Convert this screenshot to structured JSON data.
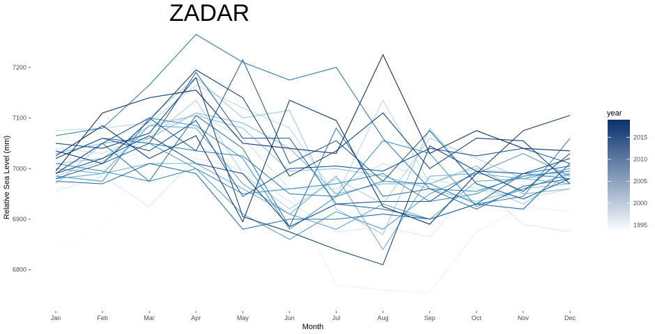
{
  "chart_data": {
    "type": "line",
    "title": "ZADAR",
    "xlabel": "Month",
    "ylabel": "Relative Sea Level (mm)",
    "categories": [
      "Jan",
      "Feb",
      "Mar",
      "Apr",
      "May",
      "Jun",
      "Jul",
      "Aug",
      "Sep",
      "Oct",
      "Nov",
      "Dec"
    ],
    "y_ticks": [
      6800,
      6900,
      7000,
      7100,
      7200
    ],
    "ylim": [
      6735,
      7285
    ],
    "grid": false,
    "color_scale": {
      "low": "#f7fbff",
      "high": "#08306b"
    },
    "legend": {
      "title": "year",
      "position": "right",
      "range": [
        1994,
        2019
      ],
      "ticks": [
        1995,
        2000,
        2005,
        2010,
        2015
      ]
    },
    "series": [
      {
        "year": 1994,
        "values": [
          6842,
          6882,
          7060,
          7170,
          7100,
          7040,
          6950,
          6910,
          6940,
          6980,
          6960,
          6990
        ]
      },
      {
        "year": 1995,
        "values": [
          6960,
          7000,
          7030,
          7050,
          6990,
          6960,
          6770,
          6760,
          6755,
          6875,
          6925,
          6915
        ]
      },
      {
        "year": 1996,
        "values": [
          6955,
          6985,
          6925,
          7020,
          7000,
          6935,
          6875,
          6885,
          6865,
          6970,
          6890,
          6875
        ]
      },
      {
        "year": 1997,
        "values": [
          7040,
          7030,
          7070,
          7110,
          7060,
          6960,
          6960,
          7010,
          6980,
          6960,
          6940,
          6960
        ]
      },
      {
        "year": 1998,
        "values": [
          7075,
          7080,
          7090,
          7165,
          7120,
          7080,
          6945,
          7135,
          6970,
          7000,
          6990,
          6990
        ]
      },
      {
        "year": 1999,
        "values": [
          6985,
          7015,
          7060,
          7135,
          6990,
          6920,
          6980,
          6930,
          7060,
          7020,
          6980,
          6990
        ]
      },
      {
        "year": 2000,
        "values": [
          6970,
          7050,
          7100,
          7180,
          7100,
          7115,
          6920,
          6870,
          7080,
          6970,
          6930,
          6990
        ]
      },
      {
        "year": 2001,
        "values": [
          7010,
          7020,
          7085,
          7105,
          7080,
          6995,
          7000,
          6985,
          6960,
          6935,
          6960,
          6970
        ]
      },
      {
        "year": 2002,
        "values": [
          7030,
          7050,
          7060,
          7110,
          7090,
          7040,
          6950,
          6970,
          6970,
          7005,
          6950,
          6960
        ]
      },
      {
        "year": 2003,
        "values": [
          7000,
          6990,
          7010,
          7010,
          6960,
          6910,
          6985,
          6840,
          6985,
          6990,
          6980,
          6970
        ]
      },
      {
        "year": 2004,
        "values": [
          6980,
          6990,
          7085,
          7080,
          6970,
          6910,
          6880,
          6930,
          6900,
          6975,
          6980,
          7000
        ]
      },
      {
        "year": 2005,
        "values": [
          7020,
          7060,
          7050,
          7000,
          6910,
          6860,
          6915,
          6880,
          6950,
          6990,
          7030,
          6985
        ]
      },
      {
        "year": 2006,
        "values": [
          6985,
          6975,
          7100,
          7085,
          7020,
          6880,
          6945,
          7055,
          7030,
          6925,
          6960,
          6990
        ]
      },
      {
        "year": 2007,
        "values": [
          7010,
          6995,
          6975,
          7000,
          6950,
          6960,
          6970,
          6990,
          6935,
          6950,
          6990,
          6980
        ]
      },
      {
        "year": 2008,
        "values": [
          7020,
          7060,
          7050,
          7035,
          7025,
          6950,
          6945,
          6975,
          6970,
          6930,
          6945,
          7060
        ]
      },
      {
        "year": 2009,
        "values": [
          7065,
          7080,
          7165,
          7265,
          7210,
          7175,
          7200,
          7060,
          6960,
          6955,
          6985,
          6995
        ]
      },
      {
        "year": 2010,
        "values": [
          6990,
          7050,
          6975,
          7105,
          7040,
          6885,
          7080,
          6945,
          6960,
          6920,
          6965,
          6980
        ]
      },
      {
        "year": 2011,
        "values": [
          6975,
          6970,
          7010,
          6990,
          6880,
          6900,
          6900,
          6910,
          6900,
          6930,
          6990,
          7005
        ]
      },
      {
        "year": 2012,
        "values": [
          6980,
          7010,
          7050,
          7190,
          7060,
          7060,
          6930,
          6920,
          6900,
          6930,
          6920,
          7010
        ]
      },
      {
        "year": 2013,
        "values": [
          6990,
          7050,
          7100,
          7035,
          7215,
          7010,
          7055,
          6975,
          7075,
          6970,
          6940,
          6980
        ]
      },
      {
        "year": 2014,
        "values": [
          7020,
          7060,
          7035,
          7095,
          6945,
          7000,
          7005,
          6995,
          7040,
          7025,
          7040,
          7010
        ]
      },
      {
        "year": 2015,
        "values": [
          6990,
          7020,
          7065,
          7010,
          6990,
          6885,
          6930,
          6935,
          6935,
          6995,
          6990,
          7020
        ]
      },
      {
        "year": 2016,
        "values": [
          7050,
          7040,
          7070,
          7180,
          6905,
          6875,
          6840,
          6810,
          7045,
          6995,
          6955,
          7030
        ]
      },
      {
        "year": 2017,
        "values": [
          7035,
          7010,
          7095,
          7195,
          7140,
          6985,
          7035,
          7110,
          7000,
          7060,
          7055,
          6970
        ]
      },
      {
        "year": 2018,
        "values": [
          7025,
          7085,
          7020,
          7065,
          6895,
          7135,
          7095,
          6925,
          6890,
          6990,
          7075,
          7105
        ]
      },
      {
        "year": 2019,
        "values": [
          6995,
          7110,
          7140,
          7155,
          7050,
          7040,
          7030,
          7225,
          7030,
          7075,
          7040,
          7035
        ]
      }
    ]
  }
}
